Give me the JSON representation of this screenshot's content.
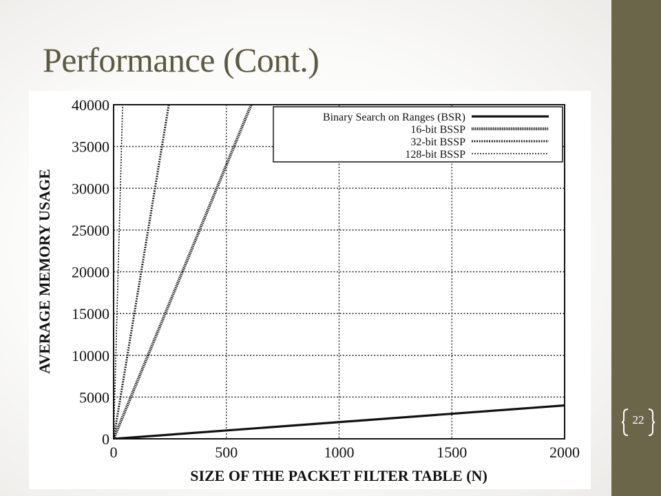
{
  "slide": {
    "title": "Performance (Cont.)",
    "page_number": "22",
    "colors": {
      "side_band": "#6b6549",
      "title": "#5d5a41",
      "bracket": "#ffffff"
    }
  },
  "chart_data": {
    "type": "line",
    "title": "",
    "xlabel": "SIZE OF THE PACKET FILTER TABLE (N)",
    "ylabel": "AVERAGE MEMORY USAGE",
    "xlim": [
      0,
      2000
    ],
    "ylim": [
      0,
      40000
    ],
    "xticks": [
      0,
      500,
      1000,
      1500,
      2000
    ],
    "yticks": [
      0,
      5000,
      10000,
      15000,
      20000,
      25000,
      30000,
      35000,
      40000
    ],
    "xtick_labels": [
      "0",
      "500",
      "1000",
      "1500",
      "2000"
    ],
    "ytick_labels": [
      "0",
      "5000",
      "10000",
      "15000",
      "20000",
      "25000",
      "30000",
      "35000",
      "40000"
    ],
    "grid": true,
    "legend_position": "top-right",
    "series": [
      {
        "name": "Binary Search on Ranges (BSR)",
        "x": [
          0,
          2000
        ],
        "y": [
          0,
          4000
        ],
        "style": "solid"
      },
      {
        "name": "16-bit BSSP",
        "x": [
          0,
          610
        ],
        "y": [
          0,
          40000
        ],
        "style": "heavy-dotted"
      },
      {
        "name": "32-bit BSSP",
        "x": [
          0,
          245
        ],
        "y": [
          0,
          40000
        ],
        "style": "dotted"
      },
      {
        "name": "128-bit BSSP",
        "x": [
          0,
          40
        ],
        "y": [
          0,
          40000
        ],
        "style": "fine-dotted"
      }
    ]
  }
}
